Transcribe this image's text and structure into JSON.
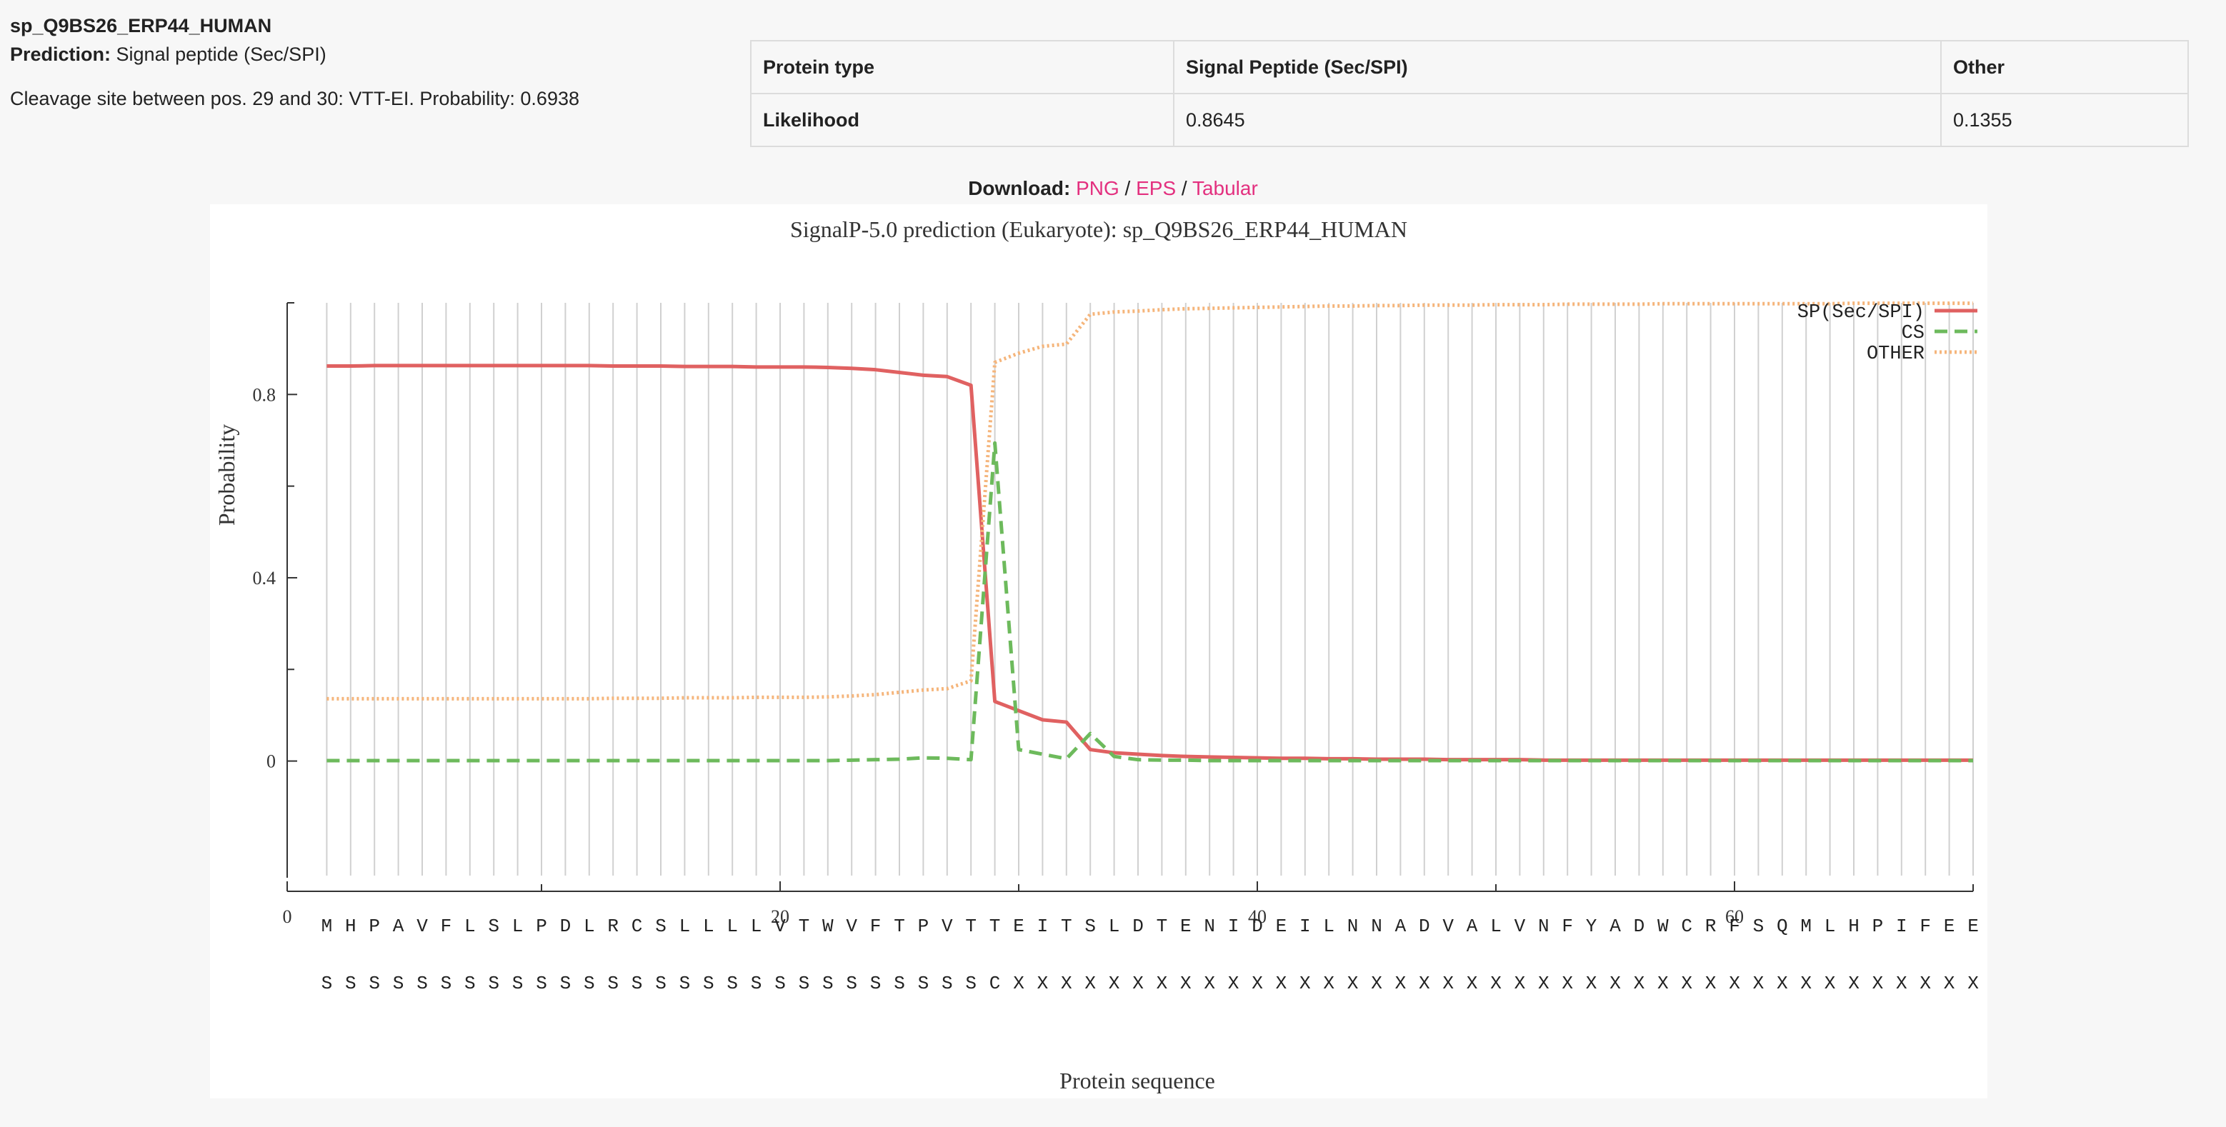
{
  "header": {
    "seq_name": "sp_Q9BS26_ERP44_HUMAN",
    "prediction_label": "Prediction:",
    "prediction_value": "Signal peptide (Sec/SPI)",
    "cleavage": "Cleavage site between pos. 29 and 30: VTT-EI. Probability: 0.6938"
  },
  "likelihood_table": {
    "row1": [
      "Protein type",
      "Signal Peptide (Sec/SPI)",
      "Other"
    ],
    "row2": [
      "Likelihood",
      "0.8645",
      "0.1355"
    ]
  },
  "download": {
    "label": "Download:",
    "links": [
      "PNG",
      "EPS",
      "Tabular"
    ],
    "sep": "/"
  },
  "chart_data": {
    "type": "line",
    "title": "SignalP-5.0 prediction (Eukaryote):  sp_Q9BS26_ERP44_HUMAN",
    "xlabel": "Protein sequence",
    "ylabel": "Probability",
    "xlim": [
      0,
      70
    ],
    "ylim": [
      -0.25,
      1.0
    ],
    "x_ticks": [
      0,
      20,
      40,
      60
    ],
    "y_ticks": [
      0,
      0.4,
      0.8
    ],
    "x_ticks_minor": [
      10,
      30,
      50,
      70
    ],
    "y_ticks_minor": [
      0.2,
      0.6,
      1.0
    ],
    "grid": "vertical line at every residue",
    "legend_position": "top-right",
    "sequence": "MHPAVFLSLPDLRCSLLLLVTWVFTPVTTEITSLDTENIDEILNNADVALVNFYADWCRFSQMLHPIFEE",
    "labels": "SSSSSSSSSSSSSSSSSSSSSSSSSSSSCXXXXXXXXXXXXXXXXXXXXXXXXXXXXXXXXXXXXXXXXX",
    "x": [
      1,
      2,
      3,
      4,
      5,
      6,
      7,
      8,
      9,
      10,
      11,
      12,
      13,
      14,
      15,
      16,
      17,
      18,
      19,
      20,
      21,
      22,
      23,
      24,
      25,
      26,
      27,
      28,
      29,
      30,
      31,
      32,
      33,
      34,
      35,
      36,
      37,
      38,
      39,
      40,
      41,
      42,
      43,
      44,
      45,
      46,
      47,
      48,
      49,
      50,
      51,
      52,
      53,
      54,
      55,
      56,
      57,
      58,
      59,
      60,
      61,
      62,
      63,
      64,
      65,
      66,
      67,
      68,
      69,
      70
    ],
    "series": [
      {
        "name": "SP(Sec/SPI)",
        "color": "#e06161",
        "style": "solid",
        "values": [
          0.862,
          0.862,
          0.863,
          0.863,
          0.863,
          0.863,
          0.863,
          0.863,
          0.863,
          0.863,
          0.863,
          0.863,
          0.862,
          0.862,
          0.862,
          0.861,
          0.861,
          0.861,
          0.86,
          0.86,
          0.86,
          0.859,
          0.857,
          0.854,
          0.848,
          0.842,
          0.839,
          0.82,
          0.13,
          0.11,
          0.09,
          0.085,
          0.025,
          0.018,
          0.015,
          0.012,
          0.01,
          0.009,
          0.008,
          0.007,
          0.006,
          0.006,
          0.005,
          0.005,
          0.004,
          0.004,
          0.004,
          0.003,
          0.003,
          0.003,
          0.003,
          0.002,
          0.002,
          0.002,
          0.002,
          0.002,
          0.002,
          0.002,
          0.002,
          0.002,
          0.002,
          0.002,
          0.002,
          0.002,
          0.002,
          0.002,
          0.002,
          0.002,
          0.002,
          0.002
        ]
      },
      {
        "name": "CS",
        "color": "#6dba5c",
        "style": "dashed",
        "values": [
          0.001,
          0.001,
          0.001,
          0.001,
          0.001,
          0.001,
          0.001,
          0.001,
          0.001,
          0.001,
          0.001,
          0.001,
          0.001,
          0.001,
          0.001,
          0.001,
          0.001,
          0.001,
          0.001,
          0.001,
          0.001,
          0.001,
          0.002,
          0.003,
          0.004,
          0.007,
          0.006,
          0.003,
          0.694,
          0.025,
          0.015,
          0.005,
          0.06,
          0.01,
          0.003,
          0.002,
          0.002,
          0.001,
          0.001,
          0.001,
          0.001,
          0.001,
          0.001,
          0.001,
          0.001,
          0.001,
          0.001,
          0.001,
          0.001,
          0.001,
          0.001,
          0.001,
          0.001,
          0.001,
          0.001,
          0.001,
          0.001,
          0.001,
          0.001,
          0.001,
          0.001,
          0.001,
          0.001,
          0.001,
          0.001,
          0.001,
          0.001,
          0.001,
          0.001,
          0.001
        ]
      },
      {
        "name": "OTHER",
        "color": "#f5b57b",
        "style": "dotted",
        "values": [
          0.136,
          0.136,
          0.136,
          0.136,
          0.136,
          0.136,
          0.136,
          0.136,
          0.136,
          0.136,
          0.136,
          0.136,
          0.137,
          0.137,
          0.137,
          0.138,
          0.138,
          0.138,
          0.139,
          0.139,
          0.139,
          0.14,
          0.142,
          0.145,
          0.15,
          0.155,
          0.158,
          0.175,
          0.87,
          0.89,
          0.905,
          0.91,
          0.975,
          0.98,
          0.982,
          0.985,
          0.987,
          0.988,
          0.989,
          0.99,
          0.991,
          0.992,
          0.993,
          0.993,
          0.994,
          0.994,
          0.995,
          0.995,
          0.995,
          0.996,
          0.996,
          0.996,
          0.997,
          0.997,
          0.997,
          0.997,
          0.998,
          0.998,
          0.998,
          0.998,
          0.998,
          0.998,
          0.998,
          0.998,
          0.999,
          0.999,
          0.999,
          0.999,
          0.999,
          0.999
        ]
      }
    ]
  }
}
